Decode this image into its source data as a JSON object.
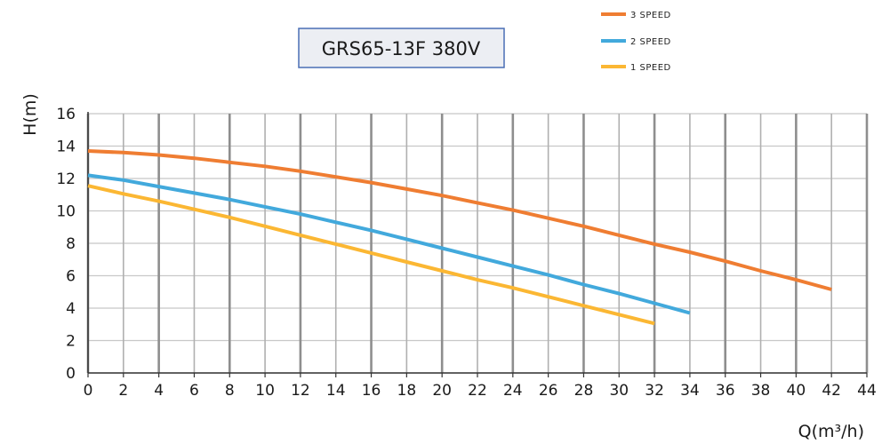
{
  "chart_data": {
    "type": "line",
    "title": "GRS65-13F 380V",
    "xlabel": "Q(m³/h)",
    "ylabel": "H(m)",
    "xlim": [
      0,
      44
    ],
    "ylim": [
      0,
      16
    ],
    "x_ticks": [
      0,
      2,
      4,
      6,
      8,
      10,
      12,
      14,
      16,
      18,
      20,
      22,
      24,
      26,
      28,
      30,
      32,
      34,
      36,
      38,
      40,
      42,
      44
    ],
    "y_ticks": [
      0,
      2,
      4,
      6,
      8,
      10,
      12,
      14,
      16
    ],
    "grid": true,
    "legend_position": "top-right",
    "series": [
      {
        "name": "3 SPEED",
        "color": "#ef7d32",
        "x": [
          0,
          2,
          4,
          6,
          8,
          10,
          12,
          14,
          16,
          18,
          20,
          22,
          24,
          26,
          28,
          30,
          32,
          34,
          36,
          38,
          40,
          42
        ],
        "y": [
          13.7,
          13.6,
          13.45,
          13.25,
          13.0,
          12.75,
          12.45,
          12.1,
          11.75,
          11.35,
          10.95,
          10.5,
          10.05,
          9.55,
          9.05,
          8.5,
          7.95,
          7.45,
          6.9,
          6.3,
          5.75,
          5.15
        ]
      },
      {
        "name": "2 SPEED",
        "color": "#42a9dc",
        "x": [
          0,
          2,
          4,
          6,
          8,
          10,
          12,
          14,
          16,
          18,
          20,
          22,
          24,
          26,
          28,
          30,
          32,
          34
        ],
        "y": [
          12.2,
          11.9,
          11.5,
          11.1,
          10.7,
          10.25,
          9.8,
          9.3,
          8.8,
          8.25,
          7.7,
          7.15,
          6.6,
          6.05,
          5.45,
          4.9,
          4.3,
          3.7
        ]
      },
      {
        "name": "1 SPEED",
        "color": "#fbb733",
        "x": [
          0,
          2,
          4,
          6,
          8,
          10,
          12,
          14,
          16,
          18,
          20,
          22,
          24,
          26,
          28,
          30,
          32
        ],
        "y": [
          11.55,
          11.05,
          10.6,
          10.1,
          9.6,
          9.05,
          8.5,
          7.95,
          7.4,
          6.85,
          6.3,
          5.75,
          5.25,
          4.7,
          4.15,
          3.6,
          3.05
        ]
      }
    ]
  }
}
